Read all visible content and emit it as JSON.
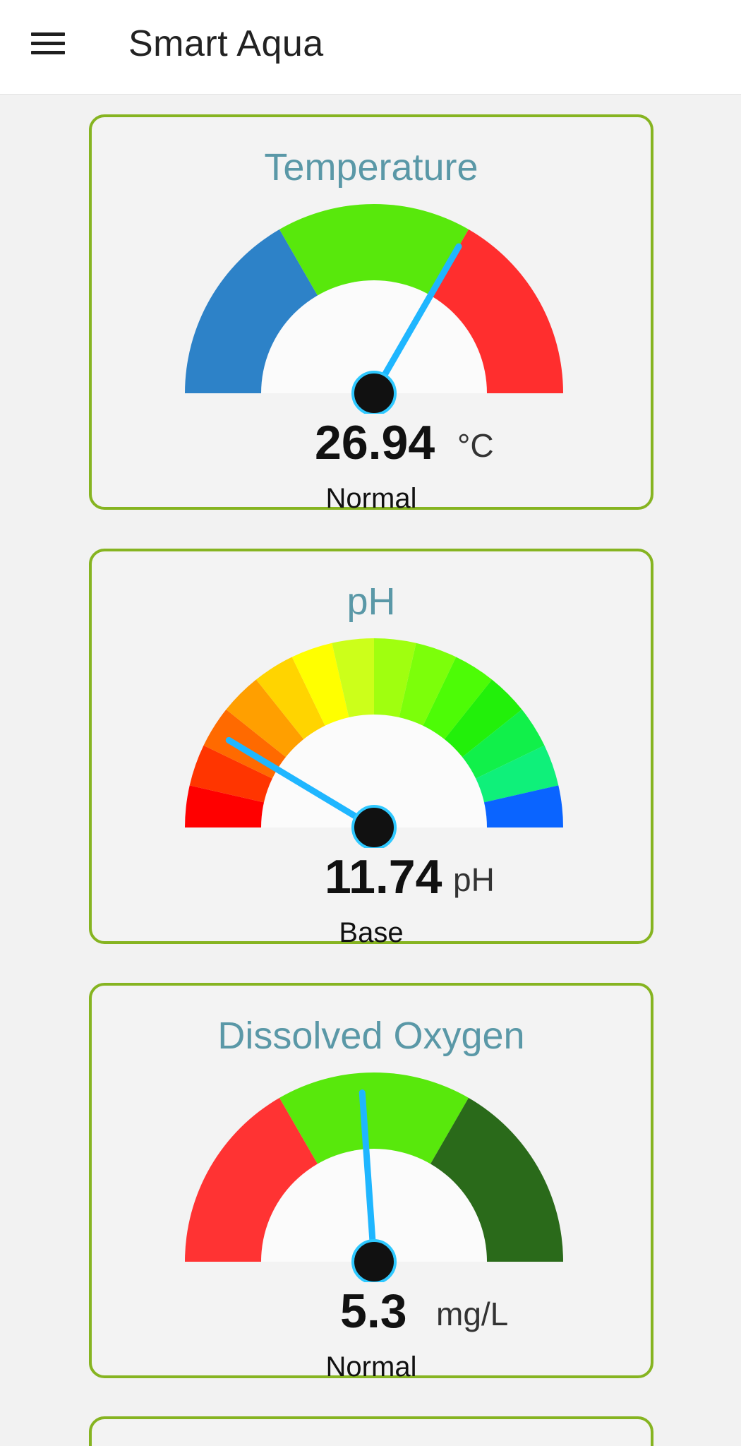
{
  "app": {
    "title": "Smart Aqua"
  },
  "cards": [
    {
      "title": "Temperature",
      "value": "26.94",
      "unit": "°C",
      "status": "Normal",
      "needle_deg": 60,
      "segments": [
        {
          "from": 180,
          "to": 120,
          "color": "#2d82c8"
        },
        {
          "from": 120,
          "to": 60,
          "color": "#58e80c"
        },
        {
          "from": 60,
          "to": 0,
          "color": "#ff2e2e"
        }
      ]
    },
    {
      "title": "pH",
      "value": "11.74",
      "unit": "pH",
      "status": "Base",
      "needle_deg": 149,
      "segments": [
        {
          "from": 180,
          "to": 167.14,
          "color": "#ff0000"
        },
        {
          "from": 167.14,
          "to": 154.29,
          "color": "#ff3500"
        },
        {
          "from": 154.29,
          "to": 141.43,
          "color": "#ff6a00"
        },
        {
          "from": 141.43,
          "to": 128.57,
          "color": "#ff9f00"
        },
        {
          "from": 128.57,
          "to": 115.71,
          "color": "#ffd400"
        },
        {
          "from": 115.71,
          "to": 102.86,
          "color": "#ffff00"
        },
        {
          "from": 102.86,
          "to": 90,
          "color": "#ccff1a"
        },
        {
          "from": 90,
          "to": 77.14,
          "color": "#a0ff0f"
        },
        {
          "from": 77.14,
          "to": 64.29,
          "color": "#7cff0a"
        },
        {
          "from": 64.29,
          "to": 51.43,
          "color": "#4dfc06"
        },
        {
          "from": 51.43,
          "to": 38.57,
          "color": "#22f00a"
        },
        {
          "from": 38.57,
          "to": 25.71,
          "color": "#11f04a"
        },
        {
          "from": 25.71,
          "to": 12.86,
          "color": "#0ff07a"
        },
        {
          "from": 12.86,
          "to": 0,
          "color": "#0a64ff"
        }
      ]
    },
    {
      "title": "Dissolved Oxygen",
      "value": "5.3",
      "unit": "mg/L",
      "status": "Normal",
      "needle_deg": 94,
      "segments": [
        {
          "from": 180,
          "to": 120,
          "color": "#ff3333"
        },
        {
          "from": 120,
          "to": 60,
          "color": "#58e80c"
        },
        {
          "from": 60,
          "to": 0,
          "color": "#2a6a1a"
        }
      ]
    }
  ],
  "colors": {
    "card_border": "#86b421",
    "title_color": "#5a98a7",
    "needle": "#1fb6ff",
    "hub": "#111111",
    "hub_ring": "#2ec8ff"
  }
}
